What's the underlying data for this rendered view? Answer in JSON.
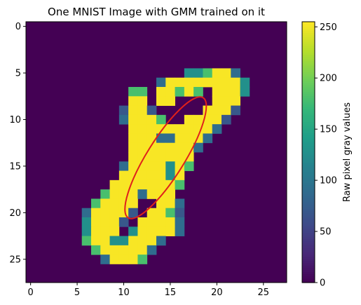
{
  "chart_data": {
    "type": "heatmap",
    "title": "One MNIST Image with GMM trained on it",
    "colorbar_label": "Raw pixel gray values",
    "colormap": "viridis",
    "vmin": 0,
    "vmax": 255,
    "xlim": [
      -0.5,
      27.5
    ],
    "ylim": [
      27.5,
      -0.5
    ],
    "x_ticks": [
      0,
      5,
      10,
      15,
      20,
      25
    ],
    "y_ticks": [
      0,
      5,
      10,
      15,
      20,
      25
    ],
    "colorbar_ticks": [
      0,
      50,
      100,
      150,
      200,
      250
    ],
    "rows": 28,
    "cols": 28,
    "pixels": [
      {
        "row": 5,
        "cells": [
          [
            17,
            128
          ],
          [
            18,
            128
          ],
          [
            19,
            180
          ],
          [
            20,
            253
          ],
          [
            21,
            253
          ],
          [
            22,
            90
          ]
        ]
      },
      {
        "row": 6,
        "cells": [
          [
            14,
            90
          ],
          [
            15,
            253
          ],
          [
            16,
            253
          ],
          [
            17,
            253
          ],
          [
            18,
            253
          ],
          [
            19,
            253
          ],
          [
            20,
            253
          ],
          [
            21,
            253
          ],
          [
            22,
            253
          ],
          [
            23,
            128
          ]
        ]
      },
      {
        "row": 7,
        "cells": [
          [
            11,
            180
          ],
          [
            12,
            180
          ],
          [
            14,
            253
          ],
          [
            15,
            253
          ],
          [
            16,
            180
          ],
          [
            17,
            253
          ],
          [
            18,
            180
          ],
          [
            20,
            253
          ],
          [
            21,
            253
          ],
          [
            22,
            253
          ],
          [
            23,
            128
          ]
        ]
      },
      {
        "row": 8,
        "cells": [
          [
            11,
            253
          ],
          [
            12,
            253
          ],
          [
            14,
            253
          ],
          [
            15,
            253
          ],
          [
            20,
            253
          ],
          [
            21,
            253
          ],
          [
            22,
            253
          ]
        ]
      },
      {
        "row": 9,
        "cells": [
          [
            10,
            70
          ],
          [
            11,
            253
          ],
          [
            12,
            253
          ],
          [
            13,
            70
          ],
          [
            19,
            253
          ],
          [
            20,
            253
          ],
          [
            21,
            253
          ],
          [
            22,
            70
          ]
        ]
      },
      {
        "row": 10,
        "cells": [
          [
            10,
            90
          ],
          [
            11,
            253
          ],
          [
            12,
            253
          ],
          [
            13,
            253
          ],
          [
            14,
            180
          ],
          [
            17,
            253
          ],
          [
            18,
            253
          ],
          [
            19,
            253
          ],
          [
            20,
            253
          ],
          [
            21,
            70
          ]
        ]
      },
      {
        "row": 11,
        "cells": [
          [
            11,
            253
          ],
          [
            12,
            253
          ],
          [
            13,
            253
          ],
          [
            14,
            253
          ],
          [
            15,
            253
          ],
          [
            16,
            253
          ],
          [
            17,
            253
          ],
          [
            18,
            253
          ],
          [
            19,
            253
          ],
          [
            20,
            90
          ]
        ]
      },
      {
        "row": 12,
        "cells": [
          [
            11,
            253
          ],
          [
            12,
            253
          ],
          [
            13,
            253
          ],
          [
            14,
            90
          ],
          [
            15,
            90
          ],
          [
            16,
            253
          ],
          [
            17,
            253
          ],
          [
            18,
            253
          ],
          [
            19,
            90
          ]
        ]
      },
      {
        "row": 13,
        "cells": [
          [
            11,
            253
          ],
          [
            12,
            253
          ],
          [
            13,
            253
          ],
          [
            14,
            253
          ],
          [
            15,
            253
          ],
          [
            16,
            253
          ],
          [
            17,
            253
          ],
          [
            18,
            90
          ]
        ]
      },
      {
        "row": 14,
        "cells": [
          [
            11,
            253
          ],
          [
            12,
            253
          ],
          [
            13,
            253
          ],
          [
            14,
            253
          ],
          [
            15,
            253
          ],
          [
            16,
            253
          ],
          [
            17,
            253
          ]
        ]
      },
      {
        "row": 15,
        "cells": [
          [
            10,
            90
          ],
          [
            11,
            253
          ],
          [
            12,
            253
          ],
          [
            13,
            253
          ],
          [
            14,
            253
          ],
          [
            15,
            128
          ],
          [
            16,
            253
          ],
          [
            17,
            180
          ]
        ]
      },
      {
        "row": 16,
        "cells": [
          [
            10,
            253
          ],
          [
            11,
            253
          ],
          [
            12,
            253
          ],
          [
            13,
            253
          ],
          [
            14,
            253
          ],
          [
            15,
            128
          ],
          [
            16,
            253
          ]
        ]
      },
      {
        "row": 17,
        "cells": [
          [
            9,
            253
          ],
          [
            10,
            253
          ],
          [
            11,
            253
          ],
          [
            12,
            253
          ],
          [
            13,
            253
          ],
          [
            14,
            253
          ],
          [
            15,
            253
          ],
          [
            16,
            180
          ]
        ]
      },
      {
        "row": 18,
        "cells": [
          [
            8,
            180
          ],
          [
            9,
            253
          ],
          [
            10,
            253
          ],
          [
            11,
            253
          ],
          [
            12,
            90
          ],
          [
            13,
            253
          ],
          [
            14,
            253
          ],
          [
            15,
            253
          ]
        ]
      },
      {
        "row": 19,
        "cells": [
          [
            7,
            180
          ],
          [
            8,
            253
          ],
          [
            9,
            253
          ],
          [
            10,
            253
          ],
          [
            11,
            253
          ],
          [
            14,
            253
          ],
          [
            15,
            253
          ],
          [
            16,
            90
          ]
        ]
      },
      {
        "row": 20,
        "cells": [
          [
            6,
            90
          ],
          [
            7,
            253
          ],
          [
            8,
            253
          ],
          [
            9,
            253
          ],
          [
            10,
            253
          ],
          [
            11,
            70
          ],
          [
            13,
            253
          ],
          [
            14,
            253
          ],
          [
            15,
            180
          ],
          [
            16,
            70
          ]
        ]
      },
      {
        "row": 21,
        "cells": [
          [
            6,
            128
          ],
          [
            7,
            253
          ],
          [
            8,
            253
          ],
          [
            9,
            253
          ],
          [
            10,
            70
          ],
          [
            12,
            253
          ],
          [
            13,
            253
          ],
          [
            14,
            253
          ],
          [
            15,
            253
          ],
          [
            16,
            90
          ]
        ]
      },
      {
        "row": 22,
        "cells": [
          [
            6,
            128
          ],
          [
            7,
            253
          ],
          [
            8,
            253
          ],
          [
            9,
            253
          ],
          [
            11,
            128
          ],
          [
            12,
            253
          ],
          [
            13,
            253
          ],
          [
            14,
            253
          ],
          [
            15,
            253
          ],
          [
            16,
            90
          ]
        ]
      },
      {
        "row": 23,
        "cells": [
          [
            6,
            180
          ],
          [
            7,
            253
          ],
          [
            8,
            253
          ],
          [
            9,
            128
          ],
          [
            10,
            128
          ],
          [
            11,
            253
          ],
          [
            12,
            253
          ],
          [
            13,
            253
          ],
          [
            14,
            90
          ]
        ]
      },
      {
        "row": 24,
        "cells": [
          [
            7,
            180
          ],
          [
            8,
            253
          ],
          [
            9,
            253
          ],
          [
            10,
            253
          ],
          [
            11,
            253
          ],
          [
            12,
            253
          ],
          [
            13,
            90
          ]
        ]
      },
      {
        "row": 25,
        "cells": [
          [
            8,
            90
          ],
          [
            9,
            253
          ],
          [
            10,
            253
          ],
          [
            11,
            253
          ],
          [
            12,
            180
          ]
        ]
      }
    ],
    "ellipse": {
      "color": "#e0201b",
      "center_x": 14.5,
      "center_y": 14.1,
      "semi_major": 7.6,
      "semi_minor": 2.0,
      "angle_deg": -58
    }
  }
}
